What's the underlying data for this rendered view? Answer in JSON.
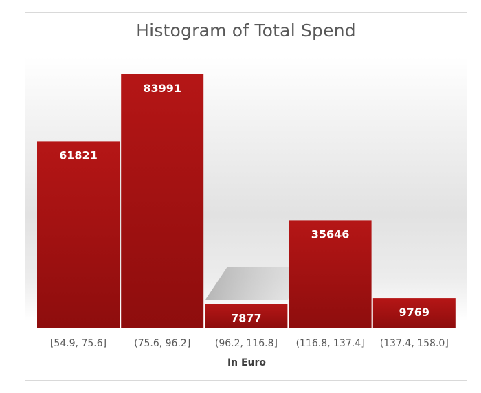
{
  "chart_data": {
    "type": "bar",
    "title": "Histogram of Total Spend",
    "xlabel": "In Euro",
    "ylabel": "",
    "categories": [
      "[54.9, 75.6]",
      "(75.6, 96.2]",
      "(96.2, 116.8]",
      "(116.8, 137.4]",
      "(137.4, 158.0]"
    ],
    "values": [
      61821,
      83991,
      7877,
      35646,
      9769
    ],
    "ylim": [
      0,
      84000
    ],
    "grid": false,
    "legend": "none",
    "bar_color": "#b01414"
  }
}
